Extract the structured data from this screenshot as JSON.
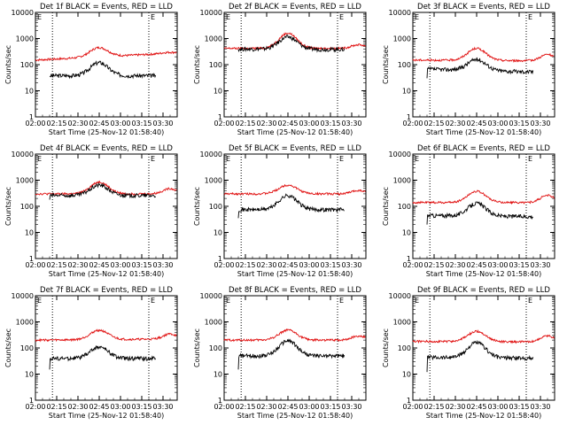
{
  "panels": [
    {
      "title": "Det 1f BLACK = Events, RED = LLD",
      "ylabel": "Counts/sec",
      "xlabel": "Start Time (25-Nov-12 01:58:40)",
      "red": {
        "base": 150,
        "peak": 450,
        "tail": 280,
        "end_rise": 300
      },
      "black": {
        "start": 35,
        "base": 38,
        "peak": 120,
        "tail": 38
      }
    },
    {
      "title": "Det 2f BLACK = Events, RED = LLD",
      "ylabel": "Counts/sec",
      "xlabel": "Start Time (25-Nov-12 01:58:40)",
      "red": {
        "base": 420,
        "peak": 1600,
        "tail": 420,
        "end_rise": 600
      },
      "black": {
        "start": 380,
        "base": 400,
        "peak": 1150,
        "tail": 380
      }
    },
    {
      "title": "Det 3f BLACK = Events, RED = LLD",
      "ylabel": "Counts/sec",
      "xlabel": "Start Time (25-Nov-12 01:58:40)",
      "red": {
        "base": 150,
        "peak": 420,
        "tail": 140,
        "end_rise": 260
      },
      "black": {
        "start": 30,
        "base": 70,
        "peak": 160,
        "tail": 50
      }
    },
    {
      "title": "Det 4f BLACK = Events, RED = LLD",
      "ylabel": "Counts/sec",
      "xlabel": "Start Time (25-Nov-12 01:58:40)",
      "red": {
        "base": 300,
        "peak": 850,
        "tail": 300,
        "end_rise": 500
      },
      "black": {
        "start": 180,
        "base": 260,
        "peak": 650,
        "tail": 260
      }
    },
    {
      "title": "Det 5f BLACK = Events, RED = LLD",
      "ylabel": "Counts/sec",
      "xlabel": "Start Time (25-Nov-12 01:58:40)",
      "red": {
        "base": 300,
        "peak": 650,
        "tail": 300,
        "end_rise": 420
      },
      "black": {
        "start": 35,
        "base": 75,
        "peak": 260,
        "tail": 75
      }
    },
    {
      "title": "Det 6f BLACK = Events, RED = LLD",
      "ylabel": "Counts/sec",
      "xlabel": "Start Time (25-Nov-12 01:58:40)",
      "red": {
        "base": 140,
        "peak": 380,
        "tail": 140,
        "end_rise": 280
      },
      "black": {
        "start": 20,
        "base": 45,
        "peak": 130,
        "tail": 40
      }
    },
    {
      "title": "Det 7f BLACK = Events, RED = LLD",
      "ylabel": "Counts/sec",
      "xlabel": "Start Time (25-Nov-12 01:58:40)",
      "red": {
        "base": 200,
        "peak": 480,
        "tail": 220,
        "end_rise": 360
      },
      "black": {
        "start": 15,
        "base": 40,
        "peak": 110,
        "tail": 40
      }
    },
    {
      "title": "Det 8f BLACK = Events, RED = LLD",
      "ylabel": "Counts/sec",
      "xlabel": "Start Time (25-Nov-12 01:58:40)",
      "red": {
        "base": 200,
        "peak": 480,
        "tail": 200,
        "end_rise": 300
      },
      "black": {
        "start": 15,
        "base": 50,
        "peak": 190,
        "tail": 50
      }
    },
    {
      "title": "Det 9f BLACK = Events, RED = LLD",
      "ylabel": "Counts/sec",
      "xlabel": "Start Time (25-Nov-12 01:58:40)",
      "red": {
        "base": 180,
        "peak": 430,
        "tail": 170,
        "end_rise": 310
      },
      "black": {
        "start": 12,
        "base": 45,
        "peak": 160,
        "tail": 40
      }
    }
  ],
  "chart_data": {
    "type": "line",
    "layout": "3x3 grid",
    "y_scale": "log",
    "ylim": [
      1,
      10000
    ],
    "y_ticks": [
      "1",
      "10",
      "100",
      "1000",
      "10000"
    ],
    "x_ticks": [
      "02:00",
      "02:15",
      "02:30",
      "02:45",
      "03:00",
      "03:15",
      "03:30"
    ],
    "xlim": [
      "02:00",
      "03:40"
    ],
    "vertical_dotted_lines": [
      "02:12",
      "03:20"
    ],
    "corner_markers": [
      "E",
      "E"
    ],
    "marker_times": [
      "02:00",
      "03:20"
    ],
    "series_colors": {
      "black": "#000000",
      "red": "#e01010"
    },
    "black_visible_range": [
      "02:10",
      "03:25"
    ],
    "peak_time": "02:45"
  }
}
